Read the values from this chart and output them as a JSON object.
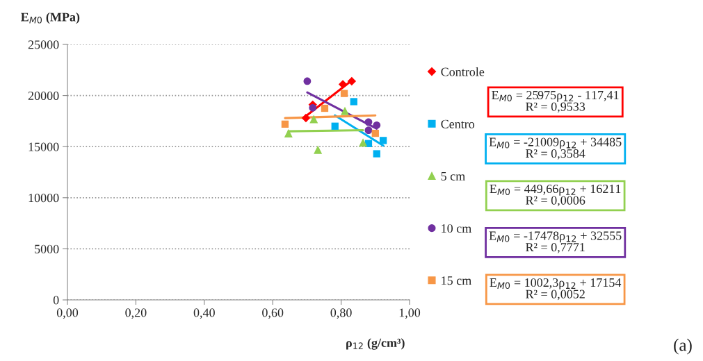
{
  "chart_data": {
    "type": "scatter",
    "ylabel": "E$_{M0}$ (MPa)",
    "xlabel": "ρ$_{12}$ (g/cm³)",
    "xlim": [
      0,
      1
    ],
    "xticks": [
      {
        "value": 0,
        "label": "0,00"
      },
      {
        "value": 0.2,
        "label": "0,20"
      },
      {
        "value": 0.4,
        "label": "0,40"
      },
      {
        "value": 0.6,
        "label": "0,60"
      },
      {
        "value": 0.8,
        "label": "0,80"
      },
      {
        "value": 1,
        "label": "1,00"
      }
    ],
    "ylim": [
      0,
      25000
    ],
    "yticks": [
      0,
      5000,
      10000,
      15000,
      20000,
      25000
    ],
    "grid": "y",
    "legend": "right",
    "series": [
      {
        "name": "Controle",
        "color": "#ff0000",
        "marker": "diamond",
        "x": [
          0.697,
          0.717,
          0.805,
          0.831
        ],
        "values": [
          17800,
          19100,
          21100,
          21400
        ]
      },
      {
        "name": "Centro",
        "color": "#00b0f0",
        "marker": "square",
        "x": [
          0.837,
          0.782,
          0.88,
          0.923,
          0.904
        ],
        "values": [
          19400,
          17000,
          15300,
          15600,
          14300
        ]
      },
      {
        "name": "5 cm",
        "color": "#92d050",
        "marker": "triangle",
        "x": [
          0.646,
          0.72,
          0.732,
          0.811,
          0.864
        ],
        "values": [
          16300,
          17700,
          14700,
          18500,
          15400
        ]
      },
      {
        "name": "10 cm",
        "color": "#7030a0",
        "marker": "circle",
        "x": [
          0.701,
          0.717,
          0.88,
          0.904,
          0.88
        ],
        "values": [
          21400,
          18800,
          17400,
          17100,
          16600
        ]
      },
      {
        "name": "15 cm",
        "color": "#f79646",
        "marker": "square",
        "x": [
          0.636,
          0.752,
          0.809,
          0.9
        ],
        "values": [
          17200,
          18750,
          20200,
          16300
        ]
      },
      {
        "type": "line",
        "color": "#ff0000",
        "x": [
          0.697,
          0.831
        ],
        "values": [
          17987,
          21468
        ]
      },
      {
        "type": "line",
        "color": "#00b0f0",
        "x": [
          0.782,
          0.923
        ],
        "values": [
          18056,
          15093
        ]
      },
      {
        "type": "line",
        "color": "#92d050",
        "x": [
          0.646,
          0.864
        ],
        "values": [
          16501,
          16600
        ]
      },
      {
        "type": "line",
        "color": "#7030a0",
        "x": [
          0.701,
          0.904
        ],
        "values": [
          20303,
          16755
        ]
      },
      {
        "type": "line",
        "color": "#f79646",
        "x": [
          0.636,
          0.9
        ],
        "values": [
          17792,
          18056
        ]
      }
    ],
    "annotations": [
      "E$_{M0}$ = 25975ρ$_{12}$ - 117,41\nR² = 0,9533",
      "E$_{M0}$ = -21009ρ$_{12}$ + 34485\nR² = 0,3584",
      "E$_{M0}$ = 449,66ρ$_{12}$ + 16211\nR² = 0,0006",
      "E$_{M0}$ = -17478ρ$_{12}$ + 32555\nR² = 0,7771",
      "E$_{M0}$ = 1002,3ρ$_{12}$ + 17154\nR² = 0,0052",
      "(a)"
    ]
  }
}
